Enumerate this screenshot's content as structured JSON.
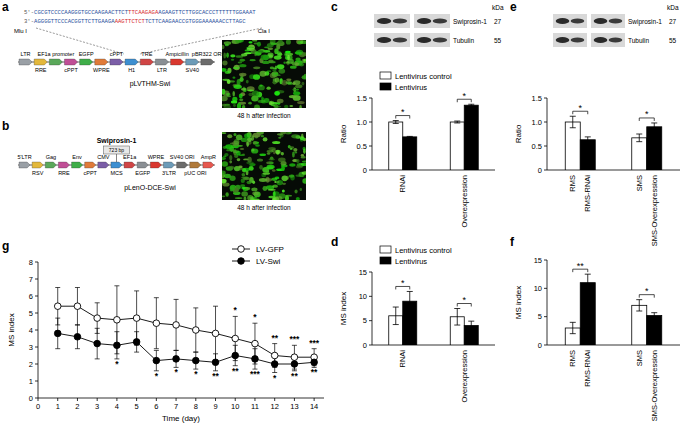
{
  "chart_data": [
    {
      "type": "bar",
      "title": "c",
      "y_label": "Ratio",
      "categories": [
        "RNAi",
        "Overexpression"
      ],
      "series": [
        {
          "name": "Lentivirus control",
          "color": "#ffffff",
          "values": [
            1.0,
            1.0
          ],
          "errors": [
            0.03,
            0.02
          ]
        },
        {
          "name": "Lentivirus",
          "color": "#000000",
          "values": [
            0.69,
            1.35
          ],
          "errors": [
            0.01,
            0.02
          ]
        }
      ],
      "annotations": [
        "*",
        "*"
      ],
      "ylim": [
        0,
        1.5
      ],
      "yticks": [
        0,
        0.5,
        {
          "value": 1,
          "label": "1.0"
        },
        1.5
      ],
      "legend": "top-left"
    },
    {
      "type": "bar",
      "title": "d",
      "y_label": "MS index",
      "categories": [
        "RNAi",
        "Overexpression"
      ],
      "series": [
        {
          "name": "Lentivirus control",
          "color": "#ffffff",
          "values": [
            6.0,
            5.8
          ],
          "errors": [
            1.8,
            1.7
          ]
        },
        {
          "name": "Lentivirus",
          "color": "#000000",
          "values": [
            9.0,
            4.0
          ],
          "errors": [
            2.0,
            0.9
          ]
        }
      ],
      "annotations": [
        "*",
        "*"
      ],
      "ylim": [
        0,
        15
      ],
      "yticks": [
        0,
        5,
        10,
        15
      ],
      "legend": "top-left"
    },
    {
      "type": "bar",
      "title": "e",
      "y_label": "Ratio",
      "categories": [
        "RMS",
        "RMS-RNAi",
        "SMS",
        "SMS-Overexpression"
      ],
      "values": [
        1.0,
        0.63,
        0.67,
        0.9
      ],
      "errors": [
        0.12,
        0.06,
        0.08,
        0.08
      ],
      "colors": [
        "#ffffff",
        "#000000",
        "#ffffff",
        "#000000"
      ],
      "annotations": [
        "*",
        "*"
      ],
      "ylim": [
        0,
        1.5
      ],
      "yticks": [
        0,
        0.5,
        {
          "value": 1,
          "label": "1.0"
        },
        1.5
      ]
    },
    {
      "type": "bar",
      "title": "f",
      "y_label": "MS index",
      "categories": [
        "RMS",
        "RMS-RNAi",
        "SMS",
        "SMS-Overexpression"
      ],
      "values": [
        3.0,
        11.0,
        7.0,
        5.2
      ],
      "errors": [
        1.0,
        1.5,
        1.0,
        0.5
      ],
      "colors": [
        "#ffffff",
        "#000000",
        "#ffffff",
        "#000000"
      ],
      "annotations": [
        "**",
        "*"
      ],
      "ylim": [
        0,
        15
      ],
      "yticks": [
        0,
        5,
        10,
        15
      ]
    },
    {
      "type": "line",
      "title": "g",
      "x_label": "Time (day)",
      "y_label": "MS index",
      "x": [
        1,
        2,
        3,
        4,
        5,
        6,
        7,
        8,
        9,
        10,
        11,
        12,
        13,
        14
      ],
      "series": [
        {
          "name": "LV-GFP",
          "color": "#000000",
          "marker": "open-circle",
          "values": [
            5.4,
            5.4,
            4.7,
            4.6,
            4.7,
            4.4,
            4.3,
            4.0,
            3.8,
            3.5,
            3.2,
            2.5,
            2.4,
            2.4
          ],
          "errors": [
            1.1,
            1.1,
            0.9,
            2.0,
            1.6,
            1.5,
            1.5,
            1.3,
            1.6,
            1.3,
            1.2,
            0.7,
            0.7,
            0.5
          ]
        },
        {
          "name": "LV-Swi",
          "color": "#000000",
          "marker": "filled-circle",
          "values": [
            3.8,
            3.6,
            3.2,
            3.1,
            3.3,
            2.2,
            2.3,
            2.2,
            2.1,
            2.5,
            2.3,
            2.0,
            2.0,
            2.1
          ],
          "errors": [
            0.9,
            0.7,
            0.9,
            0.8,
            0.6,
            0.6,
            0.5,
            0.5,
            0.5,
            0.6,
            0.6,
            0.5,
            0.4,
            0.3
          ]
        }
      ],
      "annotations": [
        {
          "x": 4,
          "text": "*"
        },
        {
          "x": 6,
          "text": "*"
        },
        {
          "x": 7,
          "text": "*"
        },
        {
          "x": 8,
          "text": "*"
        },
        {
          "x": 9,
          "text": "**"
        },
        {
          "x": 10,
          "text": "*"
        },
        {
          "x": 10,
          "text": "**"
        },
        {
          "x": 11,
          "text": "*"
        },
        {
          "x": 11,
          "text": "***"
        },
        {
          "x": 12,
          "text": "**"
        },
        {
          "x": 12,
          "text": "*"
        },
        {
          "x": 13,
          "text": "***"
        },
        {
          "x": 13,
          "text": "**"
        },
        {
          "x": 14,
          "text": "***"
        },
        {
          "x": 14,
          "text": "**"
        }
      ],
      "xlim": [
        0,
        14.5
      ],
      "xticks": [
        0,
        1,
        2,
        3,
        4,
        5,
        6,
        7,
        8,
        9,
        10,
        11,
        12,
        13,
        14
      ],
      "ylim": [
        0,
        8
      ],
      "yticks": [
        0,
        1,
        2,
        3,
        4,
        5,
        6,
        7,
        8
      ],
      "legend": "top-right"
    }
  ],
  "blots": [
    {
      "unit": "kDa",
      "rows": [
        {
          "label": "Swiprosin-1",
          "kda": 27
        },
        {
          "label": "Tubulin",
          "kda": 55
        }
      ]
    },
    {
      "unit": "kDa",
      "rows": [
        {
          "label": "Swiprosin-1",
          "kda": 27
        },
        {
          "label": "Tubulin",
          "kda": 55
        }
      ]
    }
  ],
  "diagrams": [
    {
      "title": "a",
      "sequence": {
        "lines": [
          {
            "prefix": "5'-",
            "segments": [
              {
                "text": "CGCGTCCCCAAGGGTGCCAAGAACTTCT",
                "highlight": false
              },
              {
                "text": "TTCAAGAGA",
                "highlight": true
              },
              {
                "text": "AGAAGTTCTTGGCACCCTTTTTTGGAAAT",
                "highlight": false
              }
            ]
          },
          {
            "prefix": "3'-",
            "segments": [
              {
                "text": "AGGGGTTCCCACGGTTCTTGAAGA",
                "highlight": false
              },
              {
                "text": "AAGTTCTCT",
                "highlight": true
              },
              {
                "text": "TCTTCAAGAACCGTGGGAAAAAACCTTAGC",
                "highlight": false
              }
            ]
          }
        ],
        "sites": [
          "Mlu I",
          "Cla I"
        ]
      },
      "features": [
        "LTR",
        "RRE",
        "EF1a promoter",
        "cPPT",
        "EGFP",
        "WPRE",
        "cPPT",
        "H1",
        "TRE",
        "LTR",
        "Ampicillin",
        "SV40",
        "pBR322 ORI"
      ],
      "name": "pLVTHM-Swi",
      "caption": "48 h after infection"
    },
    {
      "title": "b",
      "insert": {
        "label": "Swiprosin-1",
        "size": "723 bp"
      },
      "features": [
        "5'LTR",
        "RSV",
        "Gag",
        "RRE",
        "Env",
        "cPPT",
        "CMV",
        "MCS",
        "EF1a",
        "EGFP",
        "WPRE",
        "3'LTR",
        "SV40 ORI",
        "pUC ORI",
        "AmpR"
      ],
      "name": "pLenO-DCE-Swi",
      "caption": "48 h after infection"
    }
  ]
}
